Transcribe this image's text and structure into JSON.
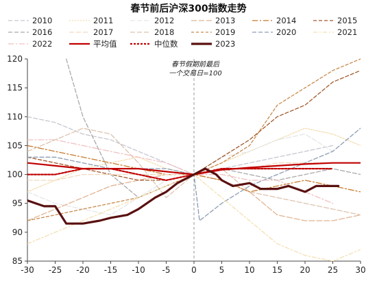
{
  "chart_data": {
    "type": "line",
    "title": "春节前后沪深300指数走势",
    "annotation": [
      "春节假期前最后",
      "一个交易日=100"
    ],
    "xlim": [
      -30,
      30
    ],
    "ylim": [
      85,
      120
    ],
    "x_ticks": [
      -30,
      -25,
      -20,
      -15,
      -10,
      -5,
      0,
      5,
      10,
      15,
      20,
      25,
      30
    ],
    "y_ticks": [
      85,
      90,
      95,
      100,
      105,
      110,
      115,
      120
    ],
    "vertical_reference_x": 0,
    "legend_position": "top",
    "series": [
      {
        "name": "2010",
        "color": "#c6c6d2",
        "dash": "6,3",
        "width": 1.3,
        "x": [
          -30,
          -25,
          -20,
          -15,
          -10,
          -5,
          0,
          5,
          10,
          15,
          20,
          25
        ],
        "y": [
          110,
          109,
          107,
          106,
          104,
          102,
          100,
          101,
          102,
          103,
          104,
          105
        ]
      },
      {
        "name": "2011",
        "color": "#f2dcae",
        "dash": "2,2",
        "width": 1.3,
        "x": [
          -30,
          -25,
          -20,
          -15,
          -10,
          -5,
          0,
          5,
          10,
          15,
          20,
          25,
          30
        ],
        "y": [
          97,
          99,
          101,
          102,
          103,
          101,
          100,
          102,
          104,
          106,
          108,
          107,
          105
        ]
      },
      {
        "name": "2012",
        "color": "#e6e6e6",
        "dash": "7,3",
        "width": 1.3,
        "x": [
          -30,
          -25,
          -20,
          -15,
          -10,
          -5,
          0,
          5,
          10,
          15,
          20,
          25
        ],
        "y": [
          97,
          95,
          94,
          93,
          96,
          99,
          100,
          103,
          104,
          106,
          107,
          104
        ]
      },
      {
        "name": "2013",
        "color": "#e0b493",
        "dash": "8,3",
        "width": 1.3,
        "x": [
          -30,
          -25,
          -20,
          -15,
          -10,
          -5,
          0,
          5,
          10,
          15,
          20,
          25,
          30
        ],
        "y": [
          92,
          94,
          96,
          98,
          99,
          100,
          100,
          99,
          97,
          93,
          92,
          92,
          93
        ]
      },
      {
        "name": "2014",
        "color": "#c87828",
        "dash": "8,3,2,3",
        "width": 1.3,
        "x": [
          -30,
          -25,
          -20,
          -15,
          -10,
          -5,
          0,
          5,
          10,
          15,
          20,
          25,
          30
        ],
        "y": [
          105,
          104,
          103,
          102,
          101,
          100,
          100,
          99,
          97,
          98,
          99,
          98,
          97
        ]
      },
      {
        "name": "2015",
        "color": "#a0582a",
        "dash": "5,3",
        "width": 1.3,
        "x": [
          -30,
          -25,
          -20,
          -15,
          -10,
          -5,
          0,
          5,
          10,
          15,
          20,
          25,
          30
        ],
        "y": [
          103,
          102,
          101,
          100,
          99,
          99,
          100,
          103,
          106,
          110,
          112,
          116,
          118
        ]
      },
      {
        "name": "2016",
        "color": "#a9a9a9",
        "dash": "6,3",
        "width": 1.3,
        "x": [
          -23,
          -20,
          -15,
          -10,
          -5,
          0,
          5,
          10,
          15,
          20,
          25,
          30
        ],
        "y": [
          120,
          110,
          100,
          96,
          98,
          100,
          101,
          100,
          99,
          100,
          101,
          100
        ]
      },
      {
        "name": "2017",
        "color": "#f0d9be",
        "dash": "7,3",
        "width": 1.3,
        "x": [
          -30,
          -25,
          -20,
          -15,
          -10,
          -5,
          0,
          5,
          10,
          15,
          20,
          25,
          30
        ],
        "y": [
          99,
          99,
          100,
          100,
          100,
          100,
          100,
          101,
          101,
          102,
          102,
          102,
          102
        ]
      },
      {
        "name": "2018",
        "color": "#ddc3ae",
        "dash": "7,3",
        "width": 1.3,
        "x": [
          -30,
          -25,
          -20,
          -15,
          -10,
          -5,
          0,
          5,
          10,
          15,
          20,
          25,
          30
        ],
        "y": [
          104,
          106,
          108,
          107,
          102,
          96,
          100,
          101,
          97,
          96,
          95,
          94,
          93
        ]
      },
      {
        "name": "2019",
        "color": "#c8894a",
        "dash": "4,3",
        "width": 1.3,
        "x": [
          -30,
          -25,
          -20,
          -15,
          -10,
          -5,
          0,
          5,
          10,
          15,
          20,
          25,
          30
        ],
        "y": [
          92,
          93,
          94,
          95,
          96,
          98,
          100,
          102,
          105,
          112,
          115,
          118,
          120
        ]
      },
      {
        "name": "2020",
        "color": "#8c9cb4",
        "dash": "6,3",
        "width": 1.3,
        "x": [
          -30,
          -25,
          -20,
          -15,
          -10,
          -5,
          0,
          1,
          5,
          10,
          15,
          20,
          25,
          30
        ],
        "y": [
          103,
          103,
          102,
          101,
          101,
          101,
          100,
          92,
          95,
          98,
          100,
          102,
          104,
          108
        ]
      },
      {
        "name": "2021",
        "color": "#f5dfb0",
        "dash": "6,3,2,3",
        "width": 1.3,
        "x": [
          -30,
          -25,
          -20,
          -15,
          -10,
          -5,
          0,
          5,
          10,
          15,
          20,
          25,
          30
        ],
        "y": [
          88,
          90,
          92,
          94,
          96,
          98,
          100,
          96,
          92,
          88,
          86,
          85,
          87
        ]
      },
      {
        "name": "2022",
        "color": "#f0c0c0",
        "dash": "8,3,2,3",
        "width": 1.3,
        "x": [
          -30,
          -25,
          -20,
          -15,
          -10,
          -5,
          0,
          5,
          10,
          15,
          20,
          25
        ],
        "y": [
          106,
          106,
          105,
          104,
          103,
          102,
          100,
          100,
          99,
          99,
          97,
          95
        ]
      },
      {
        "name": "平均值",
        "color": "#c00000",
        "dash": "",
        "width": 2.2,
        "x": [
          -30,
          -25,
          -20,
          -15,
          -10,
          -5,
          0,
          5,
          10,
          15,
          20,
          25,
          30
        ],
        "y": [
          102,
          101.5,
          101,
          101,
          101,
          100.5,
          100,
          100.8,
          101.2,
          101.5,
          101.8,
          102,
          102
        ]
      },
      {
        "name": "中位数",
        "color": "#c00000",
        "dash": "3,2",
        "width": 2.2,
        "x": [
          -30,
          -25,
          -20,
          -15,
          -10,
          -5,
          0,
          5,
          10,
          15,
          20,
          25
        ],
        "y": [
          100,
          100,
          101,
          101,
          100,
          99,
          100,
          101,
          101,
          101,
          101,
          101
        ]
      },
      {
        "name": "2023",
        "color": "#5a1010",
        "dash": "",
        "width": 3.2,
        "x": [
          -30,
          -27,
          -25,
          -23,
          -20,
          -17,
          -15,
          -12,
          -10,
          -7,
          -5,
          -3,
          0,
          2,
          4,
          5,
          7,
          10,
          12,
          15,
          17,
          20,
          22,
          24,
          26
        ],
        "y": [
          95.5,
          94.5,
          94.5,
          91.5,
          91.5,
          92,
          92.5,
          93,
          94,
          96,
          97,
          98.5,
          100,
          101,
          100,
          99,
          98,
          98.5,
          97.5,
          97.5,
          98,
          97,
          98,
          98,
          98
        ]
      }
    ]
  }
}
